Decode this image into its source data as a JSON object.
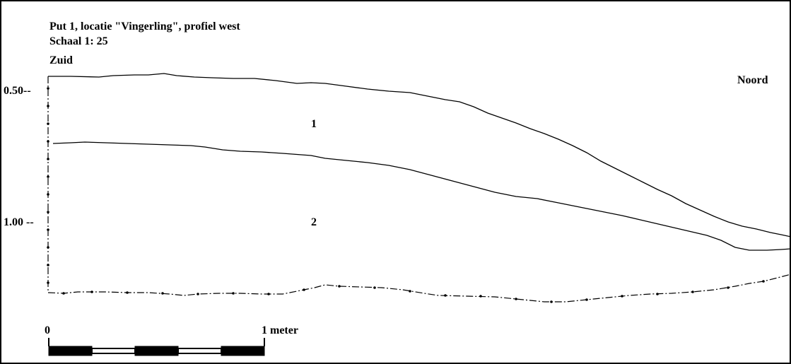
{
  "title": "Put 1, locatie \"Vingerling\", profiel west",
  "scale": "Schaal 1: 25",
  "direction_left": "Zuid",
  "direction_right": "Noord",
  "depth_labels": [
    "0.50--",
    "1.00 --"
  ],
  "layer_labels": [
    "1",
    "2"
  ],
  "scale_bar": {
    "start_label": "0",
    "end_label": "1 meter",
    "segments": 5
  },
  "colors": {
    "line": "#000000",
    "background": "#ffffff"
  }
}
